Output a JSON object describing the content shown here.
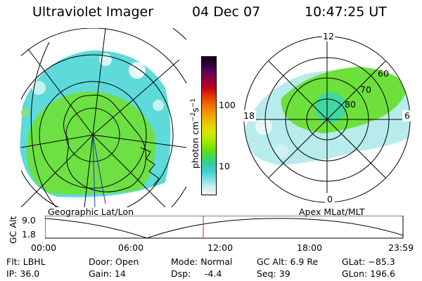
{
  "header": {
    "instrument": "Ultraviolet Imager",
    "date": "04 Dec 07",
    "time": "10:47:25 UT"
  },
  "left_panel": {
    "label": "Geographic Lat/Lon"
  },
  "right_panel": {
    "label": "Apex MLat/MLT",
    "mlt_labels": {
      "top": "12",
      "bottom": "0",
      "left": "18",
      "right": "6"
    },
    "lat_labels": [
      "60",
      "70",
      "80"
    ]
  },
  "colorbar": {
    "unit_label": "photon cm",
    "unit_exp1": "−2",
    "unit_mid": "s",
    "unit_exp2": "−1",
    "ticks": [
      "100",
      "10"
    ],
    "colors": [
      "#0a0010",
      "#2a0040",
      "#60005a",
      "#90003c",
      "#c00020",
      "#e03000",
      "#f06000",
      "#f58a00",
      "#f0b000",
      "#e8d000",
      "#d0e800",
      "#a8e800",
      "#70e000",
      "#40d850",
      "#30d0a0",
      "#40d0d0",
      "#80e0e0",
      "#c8f0f0",
      "#e8f8f8"
    ]
  },
  "gc_plot": {
    "ylabel": "GC Alt",
    "yticks": [
      "9.0",
      "1.8"
    ],
    "xticks": [
      "00:00",
      "06:00",
      "12:00",
      "18:00",
      "23:59"
    ]
  },
  "footer": {
    "flt": "Flt: LBHL",
    "ip": "IP: 36.0",
    "door": "Door: Open",
    "gain": "Gain: 14",
    "mode": "Mode: Normal",
    "dsp": "Dsp:",
    "dsp_val": "-4.4",
    "gcalt": "GC Alt: 6.9 Re",
    "seq": "Seq: 39",
    "glat": "GLat: −85.3",
    "glon": "GLon: 196.6"
  }
}
